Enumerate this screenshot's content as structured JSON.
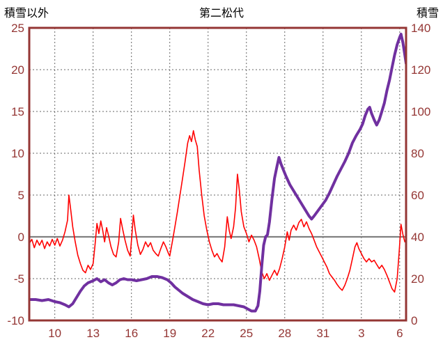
{
  "chart_data": {
    "type": "line",
    "title": "第二松代",
    "left_axis": {
      "label": "積雪以外",
      "min": -10,
      "max": 25,
      "ticks": [
        -10,
        -5,
        0,
        5,
        10,
        15,
        20,
        25
      ]
    },
    "right_axis": {
      "label": "積雪",
      "min": 0,
      "max": 140,
      "ticks": [
        0,
        20,
        40,
        60,
        80,
        100,
        120,
        140
      ]
    },
    "x_axis": {
      "min": 8,
      "max": 37.5,
      "ticks": [
        10,
        13,
        16,
        19,
        22,
        25,
        28,
        31,
        34,
        37
      ],
      "tick_labels": [
        "10",
        "13",
        "16",
        "19",
        "22",
        "25",
        "28",
        "31",
        "3",
        "6"
      ]
    },
    "grid": true,
    "legend": "none",
    "series": [
      {
        "name": "積雪以外",
        "axis": "left",
        "color": "#ff0000",
        "width": 1.6,
        "points": [
          [
            8.0,
            -0.8
          ],
          [
            8.2,
            -0.3
          ],
          [
            8.4,
            -1.3
          ],
          [
            8.6,
            -0.4
          ],
          [
            8.8,
            -1.0
          ],
          [
            9.0,
            -0.4
          ],
          [
            9.2,
            -1.4
          ],
          [
            9.4,
            -0.6
          ],
          [
            9.6,
            -1.1
          ],
          [
            9.8,
            -0.3
          ],
          [
            10.0,
            -1.0
          ],
          [
            10.2,
            -0.2
          ],
          [
            10.4,
            -1.1
          ],
          [
            10.6,
            -0.4
          ],
          [
            10.8,
            0.6
          ],
          [
            11.0,
            2.0
          ],
          [
            11.1,
            5.0
          ],
          [
            11.25,
            3.2
          ],
          [
            11.4,
            1.2
          ],
          [
            11.6,
            -0.6
          ],
          [
            11.8,
            -2.2
          ],
          [
            12.0,
            -3.2
          ],
          [
            12.2,
            -4.0
          ],
          [
            12.4,
            -4.3
          ],
          [
            12.6,
            -3.4
          ],
          [
            12.8,
            -3.9
          ],
          [
            13.0,
            -3.2
          ],
          [
            13.15,
            -1.0
          ],
          [
            13.3,
            1.6
          ],
          [
            13.45,
            0.4
          ],
          [
            13.6,
            1.9
          ],
          [
            13.75,
            0.8
          ],
          [
            13.9,
            -0.6
          ],
          [
            14.05,
            1.1
          ],
          [
            14.2,
            0.2
          ],
          [
            14.4,
            -1.2
          ],
          [
            14.6,
            -2.1
          ],
          [
            14.8,
            -2.4
          ],
          [
            15.0,
            -0.6
          ],
          [
            15.15,
            2.2
          ],
          [
            15.3,
            1.0
          ],
          [
            15.5,
            -0.4
          ],
          [
            15.7,
            -1.6
          ],
          [
            15.9,
            -2.3
          ],
          [
            16.05,
            0.5
          ],
          [
            16.15,
            2.6
          ],
          [
            16.3,
            0.8
          ],
          [
            16.5,
            -1.0
          ],
          [
            16.7,
            -2.1
          ],
          [
            16.9,
            -1.5
          ],
          [
            17.1,
            -0.6
          ],
          [
            17.3,
            -1.2
          ],
          [
            17.5,
            -0.7
          ],
          [
            17.7,
            -1.6
          ],
          [
            17.9,
            -2.0
          ],
          [
            18.1,
            -2.3
          ],
          [
            18.3,
            -1.4
          ],
          [
            18.5,
            -0.6
          ],
          [
            18.7,
            -1.2
          ],
          [
            18.9,
            -2.0
          ],
          [
            19.0,
            -2.3
          ],
          [
            19.2,
            -0.6
          ],
          [
            19.4,
            1.2
          ],
          [
            19.6,
            3.0
          ],
          [
            19.8,
            5.0
          ],
          [
            20.0,
            7.0
          ],
          [
            20.2,
            9.0
          ],
          [
            20.4,
            11.2
          ],
          [
            20.55,
            12.1
          ],
          [
            20.7,
            11.4
          ],
          [
            20.85,
            12.7
          ],
          [
            21.0,
            11.6
          ],
          [
            21.15,
            10.8
          ],
          [
            21.3,
            8.0
          ],
          [
            21.5,
            5.0
          ],
          [
            21.7,
            2.5
          ],
          [
            21.9,
            0.8
          ],
          [
            22.1,
            -0.6
          ],
          [
            22.3,
            -1.6
          ],
          [
            22.5,
            -2.4
          ],
          [
            22.7,
            -2.0
          ],
          [
            22.9,
            -2.6
          ],
          [
            23.1,
            -3.0
          ],
          [
            23.3,
            -1.2
          ],
          [
            23.5,
            2.4
          ],
          [
            23.65,
            0.8
          ],
          [
            23.8,
            -0.2
          ],
          [
            24.0,
            1.2
          ],
          [
            24.15,
            3.5
          ],
          [
            24.3,
            7.5
          ],
          [
            24.45,
            5.5
          ],
          [
            24.6,
            3.0
          ],
          [
            24.8,
            1.2
          ],
          [
            25.0,
            0.4
          ],
          [
            25.2,
            -0.6
          ],
          [
            25.4,
            0.2
          ],
          [
            25.6,
            -0.4
          ],
          [
            25.8,
            -1.2
          ],
          [
            26.0,
            -2.6
          ],
          [
            26.2,
            -4.2
          ],
          [
            26.4,
            -5.0
          ],
          [
            26.6,
            -4.4
          ],
          [
            26.8,
            -5.2
          ],
          [
            27.0,
            -4.6
          ],
          [
            27.2,
            -4.0
          ],
          [
            27.4,
            -4.6
          ],
          [
            27.6,
            -3.8
          ],
          [
            27.8,
            -2.6
          ],
          [
            28.0,
            -1.2
          ],
          [
            28.2,
            0.6
          ],
          [
            28.35,
            -0.4
          ],
          [
            28.5,
            0.8
          ],
          [
            28.7,
            1.4
          ],
          [
            28.9,
            0.8
          ],
          [
            29.1,
            1.7
          ],
          [
            29.3,
            2.1
          ],
          [
            29.5,
            1.2
          ],
          [
            29.7,
            1.8
          ],
          [
            29.9,
            1.0
          ],
          [
            30.1,
            0.4
          ],
          [
            30.3,
            -0.4
          ],
          [
            30.5,
            -1.2
          ],
          [
            30.7,
            -1.8
          ],
          [
            30.9,
            -2.4
          ],
          [
            31.1,
            -3.0
          ],
          [
            31.3,
            -3.6
          ],
          [
            31.5,
            -4.4
          ],
          [
            31.7,
            -4.8
          ],
          [
            31.9,
            -5.2
          ],
          [
            32.1,
            -5.7
          ],
          [
            32.3,
            -6.1
          ],
          [
            32.5,
            -6.4
          ],
          [
            32.7,
            -5.8
          ],
          [
            32.9,
            -5.0
          ],
          [
            33.1,
            -4.0
          ],
          [
            33.3,
            -2.6
          ],
          [
            33.5,
            -1.2
          ],
          [
            33.65,
            -0.7
          ],
          [
            33.8,
            -1.4
          ],
          [
            34.0,
            -2.0
          ],
          [
            34.2,
            -2.6
          ],
          [
            34.4,
            -3.0
          ],
          [
            34.6,
            -2.6
          ],
          [
            34.8,
            -3.0
          ],
          [
            35.0,
            -2.8
          ],
          [
            35.2,
            -3.3
          ],
          [
            35.4,
            -3.8
          ],
          [
            35.6,
            -3.4
          ],
          [
            35.8,
            -3.9
          ],
          [
            36.0,
            -4.6
          ],
          [
            36.2,
            -5.4
          ],
          [
            36.4,
            -6.2
          ],
          [
            36.6,
            -6.6
          ],
          [
            36.8,
            -5.0
          ],
          [
            36.95,
            -2.0
          ],
          [
            37.1,
            1.5
          ],
          [
            37.25,
            0.3
          ],
          [
            37.4,
            -0.6
          ]
        ]
      },
      {
        "name": "積雪",
        "axis": "right",
        "color": "#7030a0",
        "width": 4,
        "points": [
          [
            8.0,
            10
          ],
          [
            8.5,
            10
          ],
          [
            9.0,
            9.5
          ],
          [
            9.5,
            10
          ],
          [
            10.0,
            9
          ],
          [
            10.4,
            8.5
          ],
          [
            10.8,
            7.5
          ],
          [
            11.1,
            6.5
          ],
          [
            11.4,
            8
          ],
          [
            11.7,
            11
          ],
          [
            12.0,
            14
          ],
          [
            12.3,
            16.5
          ],
          [
            12.6,
            18
          ],
          [
            13.0,
            19
          ],
          [
            13.3,
            20
          ],
          [
            13.6,
            18.5
          ],
          [
            13.9,
            19.5
          ],
          [
            14.2,
            18
          ],
          [
            14.5,
            17
          ],
          [
            14.8,
            18
          ],
          [
            15.1,
            19.5
          ],
          [
            15.4,
            20
          ],
          [
            15.7,
            19.5
          ],
          [
            16.0,
            19.5
          ],
          [
            16.4,
            19
          ],
          [
            16.8,
            19.5
          ],
          [
            17.2,
            20
          ],
          [
            17.6,
            21
          ],
          [
            18.0,
            21
          ],
          [
            18.4,
            20.5
          ],
          [
            18.8,
            19.5
          ],
          [
            19.1,
            18
          ],
          [
            19.4,
            16
          ],
          [
            19.7,
            14.5
          ],
          [
            20.0,
            13
          ],
          [
            20.4,
            11.5
          ],
          [
            20.8,
            10
          ],
          [
            21.2,
            9
          ],
          [
            21.6,
            8
          ],
          [
            22.0,
            7.5
          ],
          [
            22.4,
            8
          ],
          [
            22.8,
            8
          ],
          [
            23.2,
            7.5
          ],
          [
            23.6,
            7.5
          ],
          [
            24.0,
            7.5
          ],
          [
            24.4,
            7
          ],
          [
            24.8,
            6.5
          ],
          [
            25.1,
            5.5
          ],
          [
            25.4,
            4.5
          ],
          [
            25.7,
            4.5
          ],
          [
            25.9,
            7
          ],
          [
            26.05,
            14
          ],
          [
            26.2,
            26
          ],
          [
            26.35,
            36
          ],
          [
            26.5,
            40
          ],
          [
            26.65,
            41
          ],
          [
            26.8,
            47
          ],
          [
            27.0,
            58
          ],
          [
            27.2,
            68
          ],
          [
            27.4,
            74
          ],
          [
            27.55,
            78
          ],
          [
            27.7,
            75
          ],
          [
            27.9,
            72
          ],
          [
            28.1,
            69
          ],
          [
            28.4,
            65
          ],
          [
            28.7,
            62
          ],
          [
            29.0,
            59
          ],
          [
            29.3,
            56
          ],
          [
            29.6,
            53
          ],
          [
            29.9,
            50
          ],
          [
            30.1,
            48.5
          ],
          [
            30.3,
            50
          ],
          [
            30.6,
            52.5
          ],
          [
            30.9,
            55
          ],
          [
            31.2,
            57.5
          ],
          [
            31.5,
            61
          ],
          [
            31.8,
            65
          ],
          [
            32.1,
            69
          ],
          [
            32.4,
            72.5
          ],
          [
            32.7,
            76
          ],
          [
            33.0,
            80
          ],
          [
            33.3,
            85
          ],
          [
            33.6,
            88.5
          ],
          [
            33.9,
            91.5
          ],
          [
            34.1,
            94
          ],
          [
            34.3,
            98
          ],
          [
            34.5,
            101
          ],
          [
            34.65,
            102
          ],
          [
            34.8,
            99
          ],
          [
            35.0,
            96
          ],
          [
            35.2,
            93.5
          ],
          [
            35.4,
            96
          ],
          [
            35.6,
            100
          ],
          [
            35.8,
            104
          ],
          [
            36.0,
            110
          ],
          [
            36.2,
            115
          ],
          [
            36.4,
            121
          ],
          [
            36.6,
            127
          ],
          [
            36.8,
            132
          ],
          [
            37.0,
            135.5
          ],
          [
            37.1,
            137
          ],
          [
            37.25,
            133
          ],
          [
            37.4,
            127
          ],
          [
            37.5,
            123
          ]
        ]
      }
    ]
  },
  "colors": {
    "background": "#ffffff",
    "frame": "#943634",
    "tick_label": "#943634",
    "grid": "#666666",
    "zero_line": "#808080",
    "title": "#000000"
  }
}
